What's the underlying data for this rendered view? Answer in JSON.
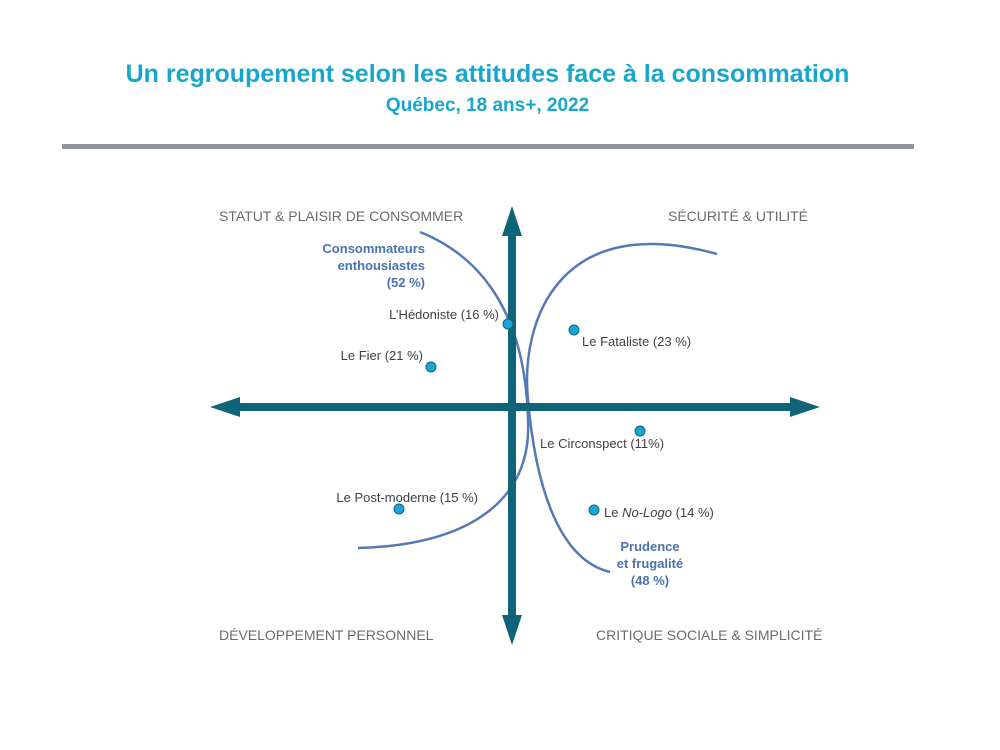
{
  "header": {
    "title": "Un regroupement selon les attitudes face à la consommation",
    "subtitle": "Québec, 18 ans+, 2022"
  },
  "quadrants": {
    "top_left": "STATUT & PLAISIR DE CONSOMMER",
    "top_right": "SÉCURITÉ & UTILITÉ",
    "bottom_left": "DÉVELOPPEMENT PERSONNEL",
    "bottom_right": "CRITIQUE SOCIALE & SIMPLICITÉ"
  },
  "groups": {
    "enthusiasts": {
      "line1": "Consommateurs",
      "line2": "enthousiastes",
      "line3": "(52 %)"
    },
    "prudence": {
      "line1": "Prudence",
      "line2": "et frugalité",
      "line3": "(48 %)"
    }
  },
  "segments": [
    {
      "id": "hedoniste",
      "label": "L’Hédoniste (16 %)"
    },
    {
      "id": "fier",
      "label": "Le Fier (21 %)"
    },
    {
      "id": "fataliste",
      "label": "Le Fataliste (23 %)"
    },
    {
      "id": "circonspect",
      "label": "Le Circonspect (11%)"
    },
    {
      "id": "postmoderne",
      "label": "Le Post-moderne (15 %)"
    },
    {
      "id": "nologo",
      "prefix": "Le ",
      "name": "No-Logo",
      "suffix": " (14 %)"
    }
  ],
  "colors": {
    "title": "#17a6cc",
    "axis": "#0f6478",
    "curve": "#5379b6",
    "point": "#1aa5d6",
    "group_label": "#4a72b0"
  }
}
